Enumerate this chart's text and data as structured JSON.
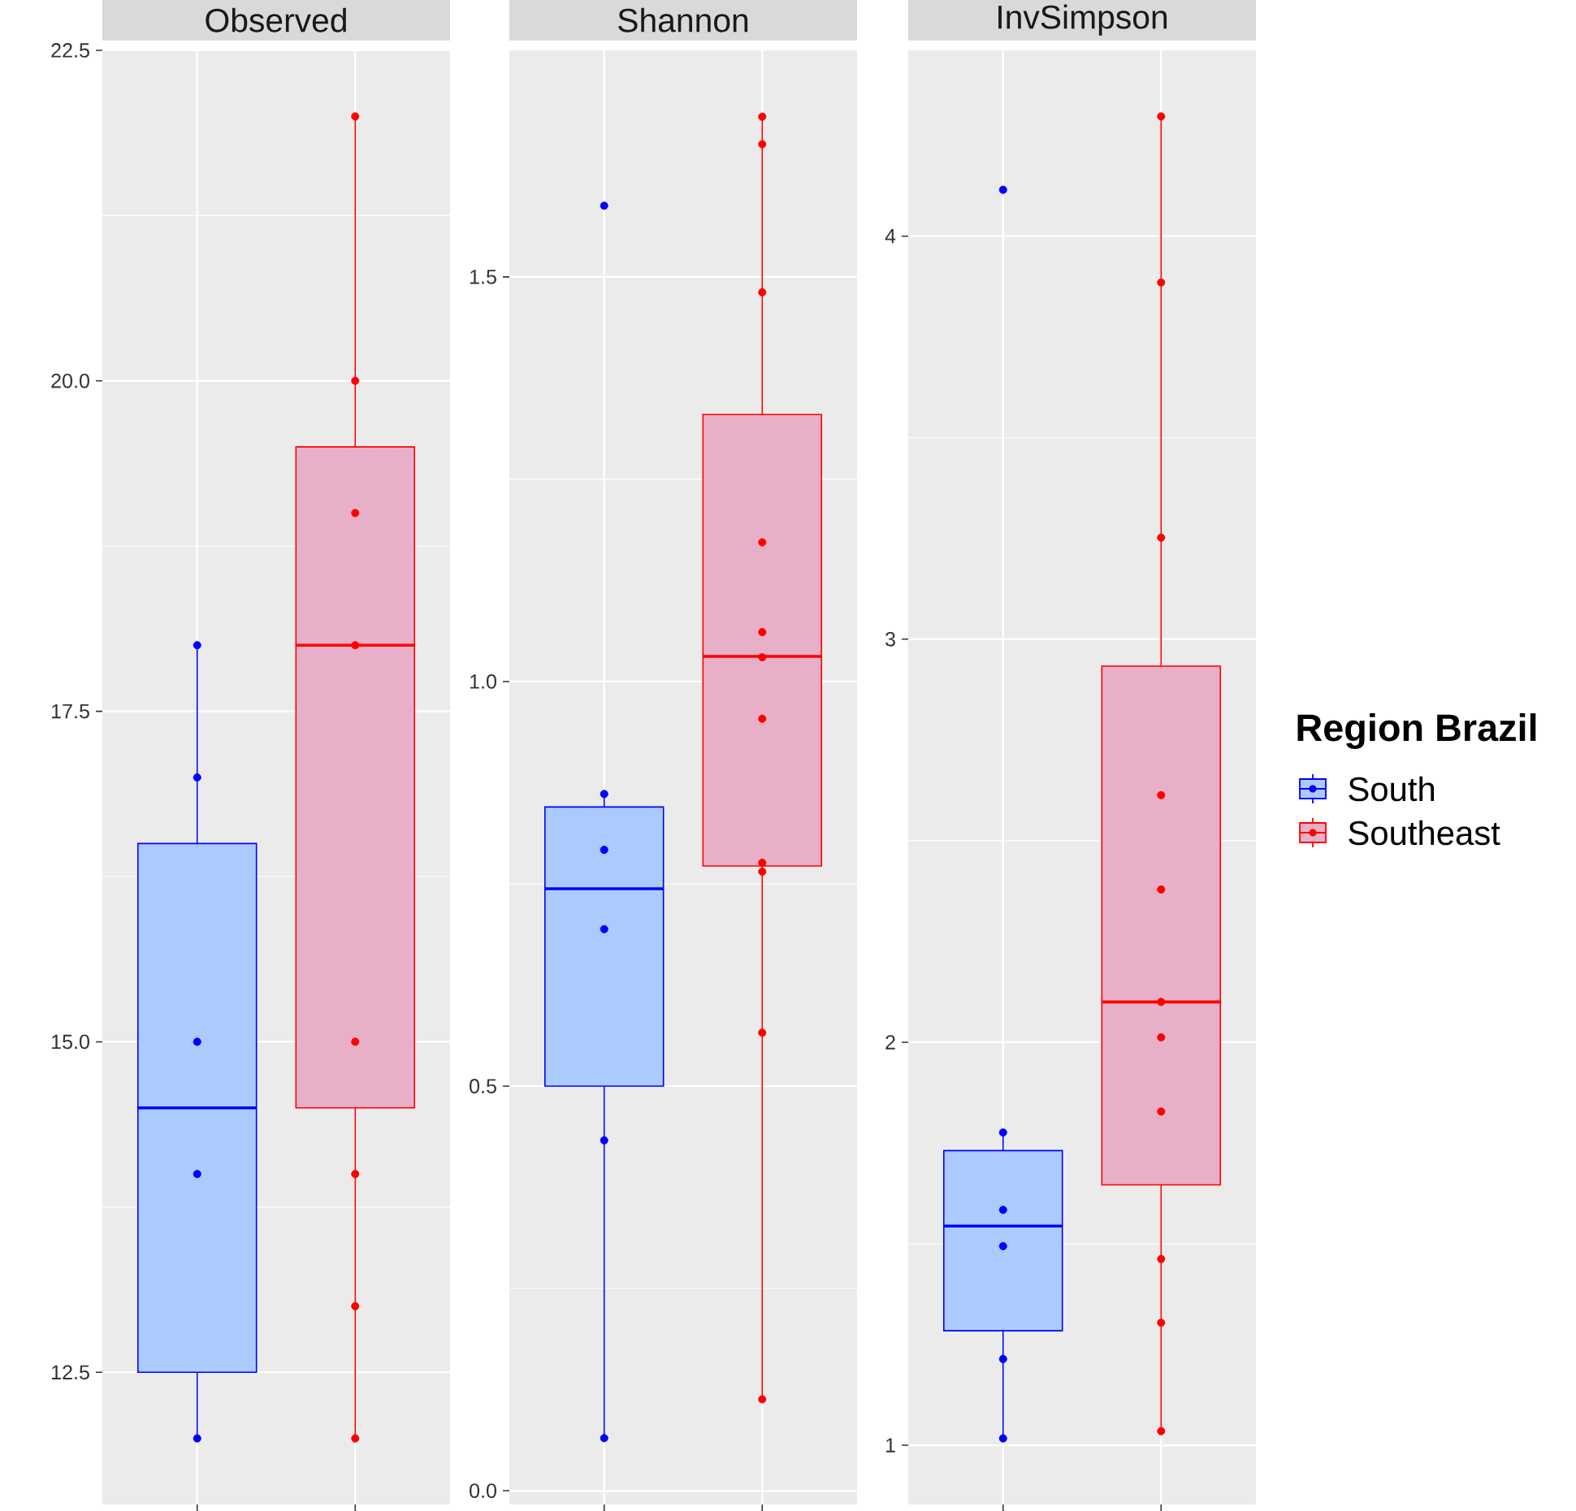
{
  "chart_data": [
    {
      "type": "box",
      "title": "Observed",
      "categories": [
        null,
        null
      ],
      "ylim": [
        11.5,
        22.5
      ],
      "yticks": [
        12.5,
        {
          "value": 15,
          "label": "15.0"
        },
        17.5,
        {
          "value": 20,
          "label": "20.0"
        },
        22.5
      ],
      "grid": true,
      "tick_labels": "y",
      "marker": "circle",
      "series": [
        {
          "color": "#0000ff",
          "boxes": [
            {
              "low": 12,
              "q1": 12.5,
              "median": 14.5,
              "q3": 16.5,
              "high": 18
            },
            null
          ]
        },
        {
          "color": "#ff0000",
          "boxes": [
            null,
            {
              "low": 12,
              "q1": 14.5,
              "median": 18,
              "q3": 19.5,
              "high": 22
            }
          ]
        },
        {
          "type": "scatter",
          "colors": [
            "#0000ff",
            "#ff0000"
          ],
          "values": [
            18,
            22
          ]
        },
        {
          "type": "scatter",
          "colors": [
            "#0000ff",
            "#ff0000"
          ],
          "values": [
            17,
            20
          ]
        },
        {
          "type": "scatter",
          "colors": [
            "#0000ff",
            "#ff0000"
          ],
          "values": [
            15,
            19
          ]
        },
        {
          "type": "scatter",
          "colors": [
            "#0000ff",
            "#ff0000"
          ],
          "values": [
            14,
            18
          ]
        },
        {
          "type": "scatter",
          "colors": [
            "#0000ff",
            "#ff0000"
          ],
          "values": [
            12,
            15
          ]
        },
        {
          "type": "scatter",
          "colors": [
            "#0000ff",
            "#ff0000"
          ],
          "values": [
            null,
            14
          ]
        },
        {
          "type": "scatter",
          "colors": [
            "#0000ff",
            "#ff0000"
          ],
          "values": [
            null,
            13
          ]
        },
        {
          "type": "scatter",
          "colors": [
            "#0000ff",
            "#ff0000"
          ],
          "values": [
            null,
            12
          ]
        }
      ]
    },
    {
      "type": "box",
      "title": "Shannon",
      "categories": [
        null,
        null
      ],
      "ylim": [
        -0.017,
        1.78
      ],
      "yticks": [
        {
          "value": 0,
          "label": "0.0"
        },
        0.5,
        {
          "value": 1,
          "label": "1.0"
        },
        1.5
      ],
      "grid": true,
      "tick_labels": "y",
      "marker": "circle",
      "series": [
        {
          "color": "#0000ff",
          "boxes": [
            {
              "low": 0.065,
              "q1": 0.5,
              "median": 0.744,
              "q3": 0.845,
              "high": 0.861
            },
            null
          ]
        },
        {
          "color": "#ff0000",
          "boxes": [
            null,
            {
              "low": 0.113,
              "q1": 0.772,
              "median": 1.031,
              "q3": 1.33,
              "high": 1.698
            }
          ]
        },
        {
          "type": "scatter",
          "colors": [
            "#0000ff",
            "#ff0000"
          ],
          "values": [
            1.588,
            1.698
          ]
        },
        {
          "type": "scatter",
          "colors": [
            "#0000ff",
            "#ff0000"
          ],
          "values": [
            0.861,
            1.664
          ]
        },
        {
          "type": "scatter",
          "colors": [
            "#0000ff",
            "#ff0000"
          ],
          "values": [
            0.792,
            1.481
          ]
        },
        {
          "type": "scatter",
          "colors": [
            "#0000ff",
            "#ff0000"
          ],
          "values": [
            0.694,
            1.172
          ]
        },
        {
          "type": "scatter",
          "colors": [
            "#0000ff",
            "#ff0000"
          ],
          "values": [
            0.433,
            1.061
          ]
        },
        {
          "type": "scatter",
          "colors": [
            "#0000ff",
            "#ff0000"
          ],
          "values": [
            0.065,
            1.03
          ]
        },
        {
          "type": "scatter",
          "colors": [
            "#0000ff",
            "#ff0000"
          ],
          "values": [
            null,
            0.954
          ]
        },
        {
          "type": "scatter",
          "colors": [
            "#0000ff",
            "#ff0000"
          ],
          "values": [
            null,
            0.776
          ]
        },
        {
          "type": "scatter",
          "colors": [
            "#0000ff",
            "#ff0000"
          ],
          "values": [
            null,
            0.765
          ]
        },
        {
          "type": "scatter",
          "colors": [
            "#0000ff",
            "#ff0000"
          ],
          "values": [
            null,
            0.566
          ]
        },
        {
          "type": "scatter",
          "colors": [
            "#0000ff",
            "#ff0000"
          ],
          "values": [
            null,
            0.113
          ]
        }
      ]
    },
    {
      "type": "box",
      "title": "InvSimpson",
      "categories": [
        null,
        null
      ],
      "ylim": [
        0.853,
        4.461
      ],
      "yticks": [
        1,
        2,
        3,
        4
      ],
      "grid": true,
      "tick_labels": "y",
      "marker": "circle",
      "legend": "right",
      "legend_title": "Region Brazil",
      "series": [
        {
          "name": "South",
          "color": "#0000ff",
          "boxes": [
            {
              "low": 1.017,
              "q1": 1.284,
              "median": 1.544,
              "q3": 1.731,
              "high": 1.776
            },
            null
          ]
        },
        {
          "name": "Southeast",
          "color": "#ff0000",
          "boxes": [
            null,
            {
              "low": 1.035,
              "q1": 1.646,
              "median": 2.1,
              "q3": 2.933,
              "high": 4.297
            }
          ]
        },
        {
          "type": "scatter",
          "colors": [
            "#0000ff",
            "#ff0000"
          ],
          "values": [
            4.115,
            4.297
          ]
        },
        {
          "type": "scatter",
          "colors": [
            "#0000ff",
            "#ff0000"
          ],
          "values": [
            1.776,
            3.885
          ]
        },
        {
          "type": "scatter",
          "colors": [
            "#0000ff",
            "#ff0000"
          ],
          "values": [
            1.584,
            3.252
          ]
        },
        {
          "type": "scatter",
          "colors": [
            "#0000ff",
            "#ff0000"
          ],
          "values": [
            1.494,
            2.613
          ]
        },
        {
          "type": "scatter",
          "colors": [
            "#0000ff",
            "#ff0000"
          ],
          "values": [
            1.214,
            2.379
          ]
        },
        {
          "type": "scatter",
          "colors": [
            "#0000ff",
            "#ff0000"
          ],
          "values": [
            1.017,
            2.1
          ]
        },
        {
          "type": "scatter",
          "colors": [
            "#0000ff",
            "#ff0000"
          ],
          "values": [
            null,
            2.012
          ]
        },
        {
          "type": "scatter",
          "colors": [
            "#0000ff",
            "#ff0000"
          ],
          "values": [
            null,
            1.828
          ]
        },
        {
          "type": "scatter",
          "colors": [
            "#0000ff",
            "#ff0000"
          ],
          "values": [
            null,
            1.462
          ]
        },
        {
          "type": "scatter",
          "colors": [
            "#0000ff",
            "#ff0000"
          ],
          "values": [
            null,
            1.304
          ]
        },
        {
          "type": "scatter",
          "colors": [
            "#0000ff",
            "#ff0000"
          ],
          "values": [
            null,
            1.035
          ]
        }
      ]
    }
  ]
}
